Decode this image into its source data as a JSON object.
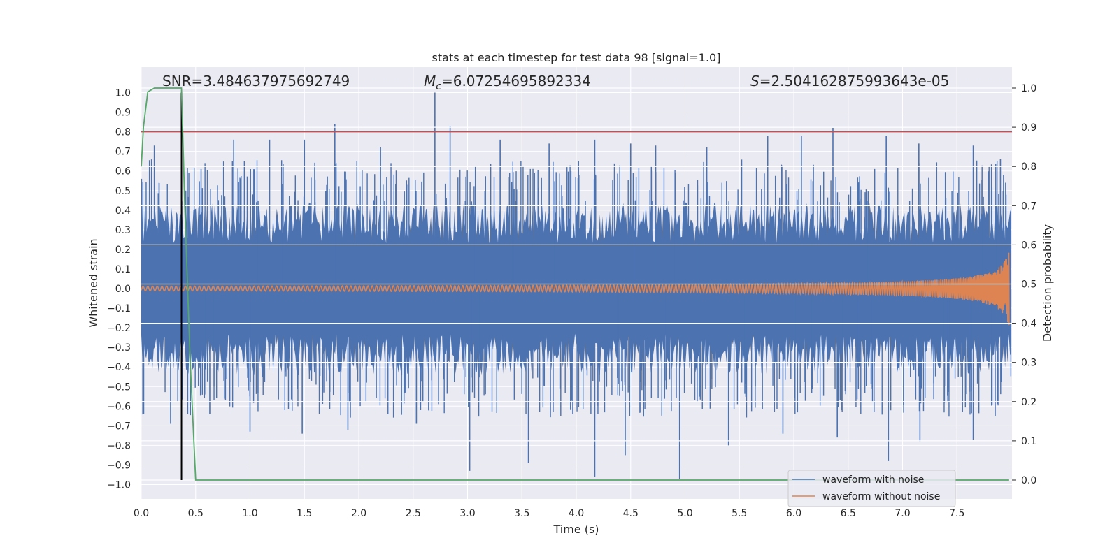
{
  "chart_data": {
    "type": "line",
    "title": "stats at each timestep for test data 98 [signal=1.0]",
    "xlabel": "Time (s)",
    "ylabel": "Whitened strain",
    "y2label": "Detection probability",
    "xlim": [
      0.0,
      8.0
    ],
    "ylim": [
      -1.05,
      1.05
    ],
    "y2lim": [
      -0.05,
      1.04
    ],
    "x_ticks": [
      "0.0",
      "0.5",
      "1.0",
      "1.5",
      "2.0",
      "2.5",
      "3.0",
      "3.5",
      "4.0",
      "4.5",
      "5.0",
      "5.5",
      "6.0",
      "6.5",
      "7.0",
      "7.5"
    ],
    "y_ticks": [
      "1.0",
      "0.9",
      "0.8",
      "0.7",
      "0.6",
      "0.5",
      "0.4",
      "0.3",
      "0.2",
      "0.1",
      "0.0",
      "−0.1",
      "−0.2",
      "−0.3",
      "−0.4",
      "−0.5",
      "−0.6",
      "−0.7",
      "−0.8",
      "−0.9",
      "−1.0"
    ],
    "y2_ticks": [
      "1.0",
      "0.9",
      "0.8",
      "0.7",
      "0.6",
      "0.5",
      "0.4",
      "0.3",
      "0.2",
      "0.1",
      "0.0"
    ],
    "grid": true,
    "legend_position": "lower-right",
    "annotations": {
      "snr": "SNR=3.484637975692749",
      "mc_symbol": "M",
      "mc_sub": "c",
      "mc_value": "=6.07254695892334",
      "s_symbol": "S",
      "s_value": "=2.504162875993643e-05"
    },
    "threshold_y": 0.8,
    "marker_x": 0.37,
    "series": [
      {
        "name": "waveform with noise",
        "color": "#4c72b0",
        "kind": "noise",
        "peak_points": [
          [
            0.12,
            0.73
          ],
          [
            0.55,
            0.61
          ],
          [
            0.85,
            0.76
          ],
          [
            1.18,
            0.76
          ],
          [
            1.5,
            0.76
          ],
          [
            1.78,
            0.84
          ],
          [
            2.2,
            0.72
          ],
          [
            2.7,
            1.0
          ],
          [
            2.84,
            0.83
          ],
          [
            3.3,
            0.76
          ],
          [
            3.75,
            0.74
          ],
          [
            4.17,
            0.76
          ],
          [
            4.5,
            0.74
          ],
          [
            4.73,
            0.73
          ],
          [
            5.2,
            0.72
          ],
          [
            5.76,
            0.78
          ],
          [
            6.07,
            0.78
          ],
          [
            6.36,
            0.82
          ],
          [
            6.85,
            0.78
          ],
          [
            7.15,
            0.74
          ],
          [
            7.65,
            0.73
          ],
          [
            7.9,
            0.66
          ]
        ],
        "trough_points": [
          [
            0.27,
            -0.69
          ],
          [
            0.63,
            -0.64
          ],
          [
            1.0,
            -0.73
          ],
          [
            1.48,
            -0.74
          ],
          [
            1.9,
            -0.72
          ],
          [
            2.53,
            -0.69
          ],
          [
            3.02,
            -0.93
          ],
          [
            3.56,
            -0.89
          ],
          [
            4.17,
            -0.96
          ],
          [
            4.45,
            -0.85
          ],
          [
            4.95,
            -0.97
          ],
          [
            5.4,
            -0.8
          ],
          [
            5.9,
            -0.74
          ],
          [
            6.4,
            -0.76
          ],
          [
            6.87,
            -0.88
          ],
          [
            7.16,
            -0.78
          ],
          [
            7.65,
            -0.77
          ]
        ],
        "band_abs": 0.23,
        "typical_abs": 0.44
      },
      {
        "name": "waveform without noise",
        "color": "#dd8452",
        "kind": "chirp",
        "amp_start": 0.012,
        "amp_end": 0.1,
        "merger_x": 7.98
      },
      {
        "name": "",
        "color": "#55a868",
        "axis": "right",
        "x": [
          0.0,
          0.02,
          0.06,
          0.12,
          0.37,
          0.4,
          0.45,
          0.5,
          7.98
        ],
        "y": [
          0.8,
          0.9,
          0.99,
          1.0,
          1.0,
          0.7,
          0.3,
          0.0,
          0.0
        ]
      }
    ]
  }
}
